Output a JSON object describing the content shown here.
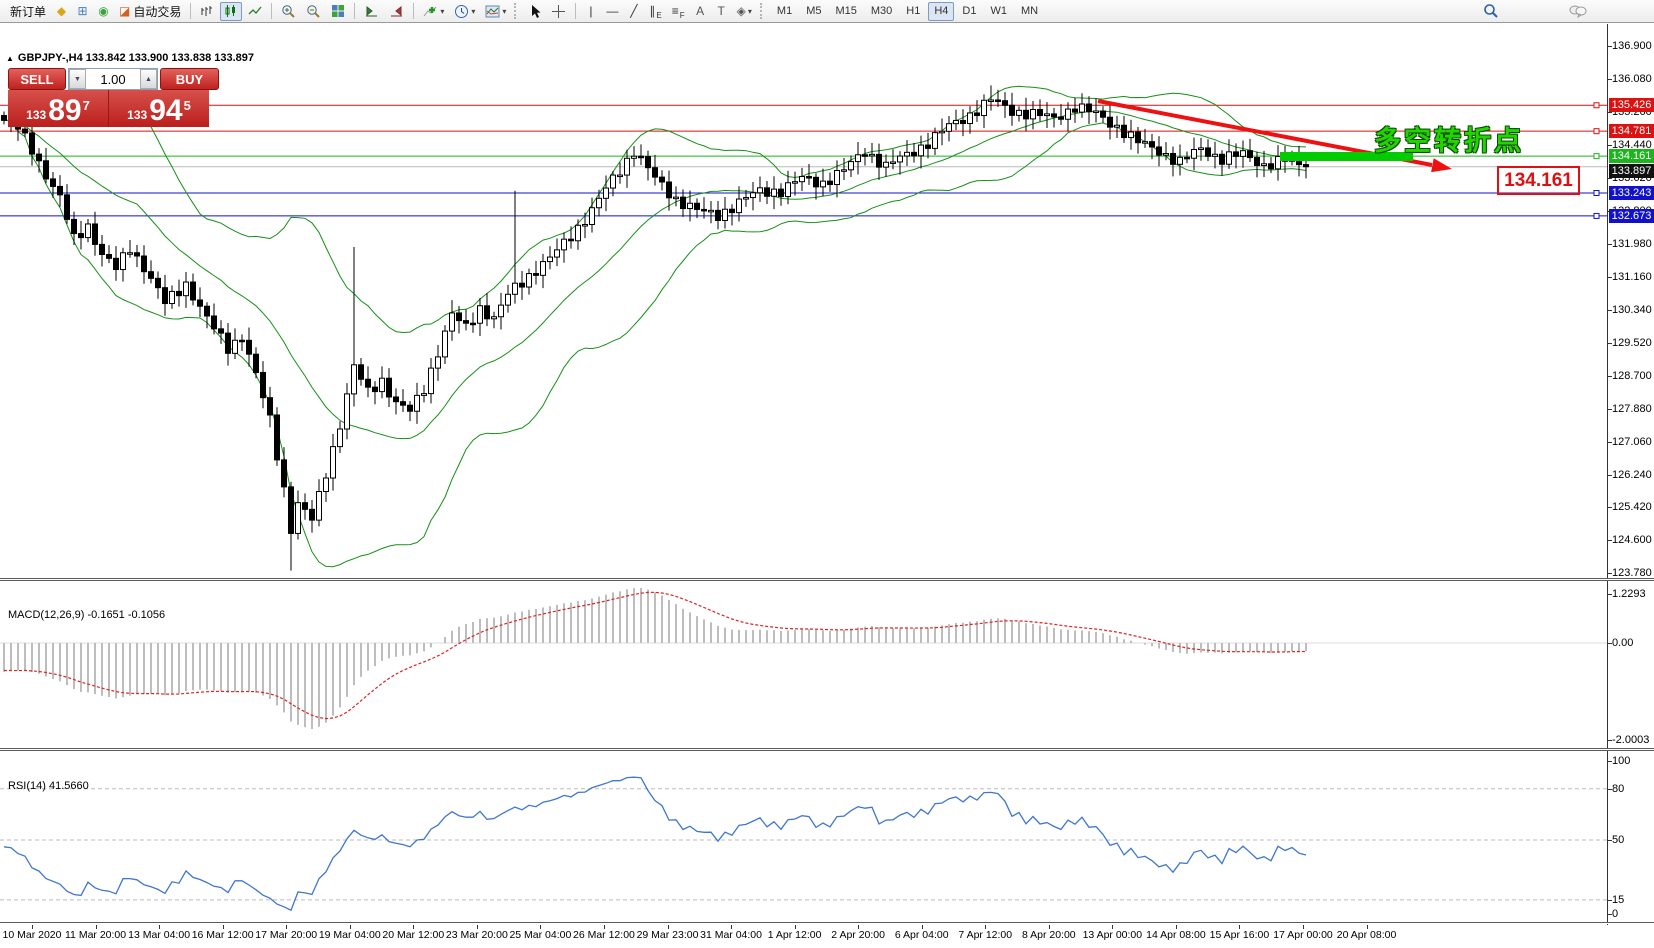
{
  "toolbar": {
    "new_order_label": "新订单",
    "autotrade_label": "自动交易",
    "timeframes": [
      "M1",
      "M5",
      "M15",
      "M30",
      "H1",
      "H4",
      "D1",
      "W1",
      "MN"
    ],
    "active_timeframe": "H4",
    "items": [
      {
        "kind": "textbtn",
        "name": "new-order-button",
        "bind": "new_order_label"
      },
      {
        "kind": "glyph",
        "name": "market-watch-button",
        "icon": "market-watch-icon",
        "glyph": "◆",
        "color": "#d9a617"
      },
      {
        "kind": "glyph",
        "name": "new-chart-button",
        "icon": "new-chart-icon",
        "glyph": "⊞",
        "color": "#4a7ebe"
      },
      {
        "kind": "glyph",
        "name": "data-center-button",
        "icon": "signal-icon",
        "glyph": "◉",
        "color": "#3aa53a"
      },
      {
        "kind": "iconText",
        "name": "autotrading-button",
        "icon": "autotrade-icon",
        "glyph": "◪",
        "color": "#d2601f",
        "bind": "autotrade_label"
      },
      {
        "kind": "sep"
      },
      {
        "kind": "svg",
        "name": "bar-chart-button",
        "icon": "bar-chart-icon",
        "svg": "bars"
      },
      {
        "kind": "svg",
        "name": "candle-chart-button",
        "icon": "candle-chart-icon",
        "svg": "candles",
        "active": true
      },
      {
        "kind": "svg",
        "name": "line-chart-button",
        "icon": "line-chart-icon",
        "svg": "line"
      },
      {
        "kind": "sep"
      },
      {
        "kind": "svg",
        "name": "zoom-in-button",
        "icon": "zoom-in-icon",
        "svg": "zoomin"
      },
      {
        "kind": "svg",
        "name": "zoom-out-button",
        "icon": "zoom-out-icon",
        "svg": "zoomout"
      },
      {
        "kind": "svg",
        "name": "tile-windows-button",
        "icon": "tile-windows-icon",
        "svg": "tiles"
      },
      {
        "kind": "sep"
      },
      {
        "kind": "svg",
        "name": "auto-scroll-button",
        "icon": "auto-scroll-icon",
        "svg": "autoscroll"
      },
      {
        "kind": "svg",
        "name": "chart-shift-button",
        "icon": "chart-shift-icon",
        "svg": "chartshift"
      },
      {
        "kind": "sep"
      },
      {
        "kind": "svgdrop",
        "name": "add-indicator-button",
        "icon": "add-indicator-icon",
        "svg": "addind"
      },
      {
        "kind": "svgdrop",
        "name": "periods-button",
        "icon": "clock-icon",
        "svg": "clock"
      },
      {
        "kind": "svgdrop",
        "name": "templates-button",
        "icon": "template-icon",
        "svg": "template"
      },
      {
        "kind": "grip"
      },
      {
        "kind": "svg",
        "name": "cursor-button",
        "icon": "cursor-icon",
        "svg": "cursor"
      },
      {
        "kind": "svg",
        "name": "crosshair-button",
        "icon": "crosshair-icon",
        "svg": "crosshair"
      },
      {
        "kind": "sep"
      },
      {
        "kind": "glyph",
        "name": "vertical-line-button",
        "icon": "vertical-line-icon",
        "glyph": "|",
        "color": "#333"
      },
      {
        "kind": "glyph",
        "name": "horizontal-line-button",
        "icon": "horizontal-line-icon",
        "glyph": "—",
        "color": "#333"
      },
      {
        "kind": "glyph",
        "name": "trendline-button",
        "icon": "trendline-icon",
        "glyph": "╱",
        "color": "#333"
      },
      {
        "kind": "glyph",
        "name": "channel-button",
        "icon": "channel-icon",
        "glyph": "∥",
        "sub": "E",
        "color": "#333"
      },
      {
        "kind": "glyph",
        "name": "fibonacci-button",
        "icon": "fibonacci-icon",
        "glyph": "≡",
        "sub": "F",
        "color": "#333"
      },
      {
        "kind": "glyph",
        "name": "text-button",
        "icon": "text-icon",
        "glyph": "A",
        "color": "#555"
      },
      {
        "kind": "glyph",
        "name": "text-label-button",
        "icon": "text-label-icon",
        "glyph": "T",
        "color": "#555"
      },
      {
        "kind": "glyphdrop",
        "name": "arrows-button",
        "icon": "arrows-icon",
        "glyph": "◈",
        "color": "#555"
      },
      {
        "kind": "grip"
      },
      {
        "kind": "timeframes"
      },
      {
        "kind": "spacer"
      },
      {
        "kind": "svg",
        "name": "search-button",
        "icon": "search-icon",
        "svg": "search"
      },
      {
        "kind": "gap"
      },
      {
        "kind": "svg",
        "name": "chat-button",
        "icon": "chat-icon",
        "svg": "chat"
      },
      {
        "kind": "gap"
      }
    ]
  },
  "chart": {
    "collapse_arrow": "▲",
    "symbol_period": "GBPJPY-,H4",
    "ohlc": "133.842 133.900 133.838 133.897"
  },
  "trade_panel": {
    "sell_label": "SELL",
    "buy_label": "BUY",
    "volume": "1.00",
    "sell_prefix": "133",
    "sell_main": "89",
    "sell_sup": "7",
    "buy_prefix": "133",
    "buy_main": "94",
    "buy_sup": "5"
  },
  "annotations": {
    "turning_point": "多空转折点",
    "price_box": "134.161"
  },
  "indicators": {
    "macd": {
      "label": "MACD(12,26,9)",
      "values": "-0.1651 -0.1056",
      "axis_top": "1.2293",
      "axis_zero": "0.00",
      "axis_bottom": "-2.0003"
    },
    "rsi": {
      "label": "RSI(14)",
      "value": "41.5660",
      "axis_top": "100",
      "axis_bottom": "0"
    }
  },
  "price_axis": {
    "ticks": [
      "136.900",
      "136.080",
      "135.260",
      "134.440",
      "133.620",
      "132.800",
      "131.980",
      "131.160",
      "130.340",
      "129.520",
      "128.700",
      "127.880",
      "127.060",
      "126.240",
      "125.420",
      "124.600",
      "123.780"
    ],
    "markers": [
      {
        "text": "135.426",
        "price": 135.426,
        "color": "#dd1111",
        "type": "hline"
      },
      {
        "text": "134.781",
        "price": 134.781,
        "color": "#dd1111",
        "type": "hline"
      },
      {
        "text": "134.161",
        "price": 134.161,
        "color": "#1db51d",
        "type": "hline"
      },
      {
        "text": "133.897",
        "price": 133.897,
        "color": "#111111",
        "type": "current"
      },
      {
        "text": "133.243",
        "price": 133.243,
        "color": "#1111cc",
        "type": "hline"
      },
      {
        "text": "132.673",
        "price": 132.673,
        "color": "#1111cc",
        "type": "hline"
      }
    ]
  },
  "time_axis": {
    "labels": [
      "10 Mar 2020",
      "11 Mar 20:00",
      "13 Mar 04:00",
      "16 Mar 12:00",
      "17 Mar 20:00",
      "19 Mar 04:00",
      "20 Mar 12:00",
      "23 Mar 20:00",
      "25 Mar 04:00",
      "26 Mar 12:00",
      "29 Mar 23:00",
      "31 Mar 04:00",
      "1 Apr 12:00",
      "2 Apr 20:00",
      "6 Apr 04:00",
      "7 Apr 12:00",
      "8 Apr 20:00",
      "13 Apr 00:00",
      "14 Apr 08:00",
      "15 Apr 16:00",
      "17 Apr 00:00",
      "20 Apr 08:00"
    ]
  },
  "chart_data": [
    {
      "type": "candlestick",
      "symbol": "GBPJPY",
      "timeframe": "H4",
      "bars": 187,
      "visible_price_range": [
        123.78,
        137.4
      ],
      "close_anchors": [
        [
          0,
          135.05
        ],
        [
          2,
          134.85
        ],
        [
          4,
          134.35
        ],
        [
          6,
          133.7
        ],
        [
          8,
          133.1
        ],
        [
          10,
          132.1
        ],
        [
          12,
          132.45
        ],
        [
          14,
          131.7
        ],
        [
          16,
          131.35
        ],
        [
          18,
          131.9
        ],
        [
          20,
          131.4
        ],
        [
          23,
          130.5
        ],
        [
          26,
          131.0
        ],
        [
          29,
          130.1
        ],
        [
          32,
          129.4
        ],
        [
          34,
          129.7
        ],
        [
          36,
          128.7
        ],
        [
          38,
          127.6
        ],
        [
          40,
          125.9
        ],
        [
          41,
          124.9
        ],
        [
          42,
          125.5
        ],
        [
          44,
          125.1
        ],
        [
          46,
          126.3
        ],
        [
          48,
          127.5
        ],
        [
          50,
          128.9
        ],
        [
          52,
          128.3
        ],
        [
          54,
          128.6
        ],
        [
          56,
          128.0
        ],
        [
          58,
          127.8
        ],
        [
          60,
          128.4
        ],
        [
          62,
          129.3
        ],
        [
          64,
          130.2
        ],
        [
          66,
          129.9
        ],
        [
          68,
          130.4
        ],
        [
          70,
          130.1
        ],
        [
          72,
          130.7
        ],
        [
          73,
          130.9
        ],
        [
          75,
          131.2
        ],
        [
          78,
          131.6
        ],
        [
          81,
          132.2
        ],
        [
          84,
          132.8
        ],
        [
          87,
          133.6
        ],
        [
          90,
          134.3
        ],
        [
          93,
          133.6
        ],
        [
          96,
          133.1
        ],
        [
          99,
          132.8
        ],
        [
          102,
          132.7
        ],
        [
          105,
          133.0
        ],
        [
          108,
          133.3
        ],
        [
          111,
          133.3
        ],
        [
          114,
          133.6
        ],
        [
          117,
          133.5
        ],
        [
          120,
          133.8
        ],
        [
          123,
          134.3
        ],
        [
          126,
          133.9
        ],
        [
          129,
          134.2
        ],
        [
          132,
          134.5
        ],
        [
          135,
          134.9
        ],
        [
          138,
          135.2
        ],
        [
          141,
          135.55
        ],
        [
          144,
          135.3
        ],
        [
          147,
          135.2
        ],
        [
          150,
          135.1
        ],
        [
          153,
          135.4
        ],
        [
          156,
          135.2
        ],
        [
          159,
          134.9
        ],
        [
          162,
          134.5
        ],
        [
          165,
          134.3
        ],
        [
          168,
          134.0
        ],
        [
          171,
          134.35
        ],
        [
          174,
          134.1
        ],
        [
          177,
          134.2
        ],
        [
          180,
          133.95
        ],
        [
          183,
          134.05
        ],
        [
          186,
          133.897
        ]
      ],
      "special_bars": {
        "41": {
          "low": 123.85
        },
        "50": {
          "high": 131.9
        },
        "73": {
          "high": 133.3
        },
        "141": {
          "high": 135.92
        }
      },
      "overlays": {
        "bollinger_period": 20,
        "bollinger_dev": 2
      }
    },
    {
      "type": "macd-histogram",
      "params": [
        12,
        26,
        9
      ],
      "current_macd": -0.1651,
      "current_signal": -0.1056,
      "axis_range": [
        -2.0003,
        1.2293
      ]
    },
    {
      "type": "rsi-line",
      "period": 14,
      "current": 41.566,
      "levels": [
        80,
        50,
        15
      ],
      "range": [
        0,
        100
      ]
    }
  ],
  "colors": {
    "panel_red": "#c0211e",
    "line_red": "#dd1111",
    "line_blue": "#1111cc",
    "line_green": "#1db51d",
    "current_price_line": "#b8b8b8",
    "band_green": "#169016",
    "histogram": "#bdbdbd",
    "signal": "#dd2222",
    "rsi_line": "#3f76cf",
    "annotation_green": "#23d500",
    "bar_green": "#00cc00",
    "trend_arrow_red": "#ee1111"
  }
}
